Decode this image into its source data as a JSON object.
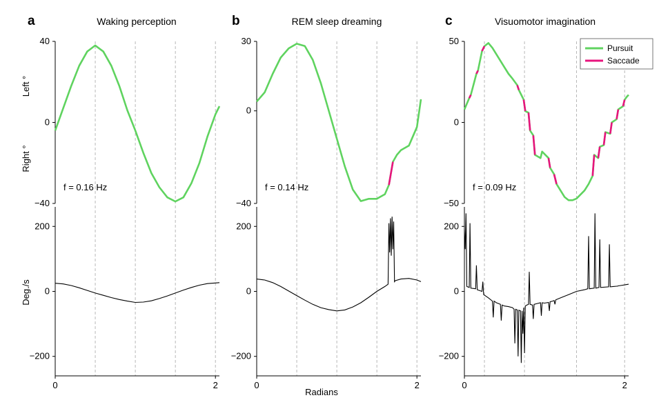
{
  "figure": {
    "xlabel": "Radians",
    "ylabel_top_left": "Left °",
    "ylabel_top_right": "Right °",
    "ylabel_bottom": "Deg./s",
    "legend": [
      {
        "label": "Pursuit",
        "color": "#5fd35f"
      },
      {
        "label": "Saccade",
        "color": "#e8147d"
      }
    ]
  },
  "chart_data": [
    {
      "type": "line",
      "letter": "a",
      "title": "Waking perception",
      "freq_label": "f = 0.16 Hz",
      "x_range": [
        0,
        2.05
      ],
      "x_ticks": [
        0,
        2
      ],
      "x_tick_labels": [
        "0",
        "2"
      ],
      "gridlines_x": [
        0.5,
        1.0,
        1.5,
        2.0
      ],
      "position": {
        "ylim": [
          -40,
          40
        ],
        "y_ticks": [
          40,
          0,
          -40
        ],
        "y_tick_labels": [
          "40",
          "0",
          "−40"
        ],
        "series_name": "Pursuit",
        "x": [
          0,
          0.1,
          0.2,
          0.3,
          0.4,
          0.5,
          0.6,
          0.7,
          0.8,
          0.9,
          1.0,
          1.1,
          1.2,
          1.3,
          1.4,
          1.5,
          1.6,
          1.7,
          1.8,
          1.9,
          2.0,
          2.05
        ],
        "y": [
          -4,
          7,
          18,
          28,
          35,
          38,
          35,
          28,
          18,
          6,
          -4,
          -15,
          -25,
          -32,
          -37,
          -39,
          -37,
          -30,
          -20,
          -7,
          4,
          8
        ],
        "saccades": []
      },
      "velocity": {
        "ylim": [
          -260,
          260
        ],
        "y_ticks": [
          200,
          0,
          -200
        ],
        "y_tick_labels": [
          "200",
          "0",
          "−200"
        ],
        "x": [
          0,
          0.1,
          0.2,
          0.3,
          0.4,
          0.5,
          0.6,
          0.7,
          0.8,
          0.9,
          1.0,
          1.1,
          1.2,
          1.3,
          1.4,
          1.5,
          1.6,
          1.7,
          1.8,
          1.9,
          2.0,
          2.05
        ],
        "y": [
          25,
          23,
          18,
          11,
          3,
          -5,
          -12,
          -19,
          -25,
          -30,
          -34,
          -33,
          -29,
          -22,
          -14,
          -5,
          4,
          12,
          19,
          24,
          26,
          27
        ]
      }
    },
    {
      "type": "line",
      "letter": "b",
      "title": "REM sleep dreaming",
      "freq_label": "f = 0.14 Hz",
      "x_range": [
        0,
        2.05
      ],
      "x_ticks": [
        0,
        2
      ],
      "x_tick_labels": [
        "0",
        "2"
      ],
      "gridlines_x": [
        0.5,
        1.0,
        1.5,
        2.0
      ],
      "position": {
        "ylim": [
          -40,
          30
        ],
        "y_ticks": [
          30,
          0,
          -40
        ],
        "y_tick_labels": [
          "30",
          "0",
          "−40"
        ],
        "series_name": "Pursuit",
        "x": [
          0,
          0.1,
          0.2,
          0.3,
          0.4,
          0.5,
          0.6,
          0.7,
          0.8,
          0.9,
          1.0,
          1.1,
          1.2,
          1.3,
          1.4,
          1.5,
          1.55,
          1.6,
          1.65,
          1.7,
          1.75,
          1.8,
          1.9,
          2.0,
          2.05
        ],
        "y": [
          4,
          8,
          16,
          23,
          27,
          29,
          28,
          22,
          12,
          0,
          -12,
          -24,
          -34,
          -39,
          -38,
          -38,
          -37,
          -36,
          -32,
          -22,
          -19,
          -17,
          -15,
          -7,
          5
        ],
        "saccades": [
          [
            1.65,
            1.72
          ]
        ]
      },
      "velocity": {
        "ylim": [
          -260,
          260
        ],
        "y_ticks": [
          200,
          0,
          -200
        ],
        "y_tick_labels": [
          "200",
          "0",
          "−200"
        ],
        "x": [
          0,
          0.1,
          0.2,
          0.3,
          0.4,
          0.5,
          0.6,
          0.7,
          0.8,
          0.9,
          1.0,
          1.1,
          1.2,
          1.3,
          1.4,
          1.5,
          1.6,
          1.64,
          1.65,
          1.66,
          1.67,
          1.68,
          1.69,
          1.7,
          1.71,
          1.72,
          1.73,
          1.8,
          1.9,
          2.0,
          2.05
        ],
        "y": [
          38,
          35,
          27,
          15,
          1,
          -13,
          -27,
          -40,
          -50,
          -56,
          -60,
          -57,
          -48,
          -35,
          -18,
          0,
          15,
          22,
          210,
          120,
          225,
          110,
          230,
          130,
          215,
          30,
          33,
          38,
          40,
          35,
          30
        ]
      }
    },
    {
      "type": "line",
      "letter": "c",
      "title": "Visuomotor imagination",
      "freq_label": "f = 0.09 Hz",
      "x_range": [
        0,
        2.05
      ],
      "x_ticks": [
        0,
        2
      ],
      "x_tick_labels": [
        "0",
        "2"
      ],
      "gridlines_x": [
        0.25,
        0.75,
        1.4,
        2.0
      ],
      "position": {
        "ylim": [
          -50,
          50
        ],
        "y_ticks": [
          50,
          0,
          -50
        ],
        "y_tick_labels": [
          "50",
          "0",
          "−50"
        ],
        "series_name": "Pursuit",
        "x": [
          0,
          0.06,
          0.08,
          0.15,
          0.17,
          0.22,
          0.25,
          0.3,
          0.35,
          0.4,
          0.45,
          0.5,
          0.55,
          0.6,
          0.66,
          0.68,
          0.74,
          0.76,
          0.8,
          0.82,
          0.86,
          0.88,
          0.95,
          0.97,
          1.05,
          1.07,
          1.12,
          1.15,
          1.2,
          1.25,
          1.3,
          1.35,
          1.4,
          1.5,
          1.55,
          1.6,
          1.62,
          1.67,
          1.69,
          1.74,
          1.76,
          1.82,
          1.84,
          1.9,
          1.92,
          1.98,
          2.0,
          2.03,
          2.05
        ],
        "y": [
          8,
          15,
          17,
          30,
          32,
          44,
          47,
          49,
          46,
          42,
          38,
          34,
          30,
          27,
          23,
          20,
          14,
          7,
          6,
          -5,
          -8,
          -20,
          -22,
          -18,
          -22,
          -28,
          -32,
          -38,
          -42,
          -46,
          -48,
          -48,
          -47,
          -42,
          -38,
          -33,
          -20,
          -22,
          -15,
          -14,
          -6,
          -7,
          0,
          2,
          8,
          10,
          14,
          16,
          17
        ],
        "saccades": [
          [
            0.06,
            0.08
          ],
          [
            0.15,
            0.17
          ],
          [
            0.22,
            0.25
          ],
          [
            0.66,
            0.68
          ],
          [
            0.74,
            0.76
          ],
          [
            0.8,
            0.82
          ],
          [
            0.86,
            0.88
          ],
          [
            1.05,
            1.07
          ],
          [
            1.12,
            1.15
          ],
          [
            1.6,
            1.62
          ],
          [
            1.67,
            1.69
          ],
          [
            1.74,
            1.76
          ],
          [
            1.82,
            1.84
          ],
          [
            1.9,
            1.92
          ],
          [
            1.98,
            2.0
          ]
        ]
      },
      "velocity": {
        "ylim": [
          -260,
          260
        ],
        "y_ticks": [
          200,
          0,
          -200
        ],
        "y_tick_labels": [
          "200",
          "0",
          "−200"
        ],
        "x": [
          0,
          0.01,
          0.02,
          0.03,
          0.06,
          0.07,
          0.08,
          0.14,
          0.15,
          0.16,
          0.22,
          0.23,
          0.24,
          0.3,
          0.35,
          0.36,
          0.37,
          0.4,
          0.45,
          0.46,
          0.47,
          0.5,
          0.55,
          0.6,
          0.62,
          0.63,
          0.64,
          0.66,
          0.67,
          0.68,
          0.7,
          0.71,
          0.72,
          0.73,
          0.74,
          0.75,
          0.76,
          0.78,
          0.8,
          0.81,
          0.82,
          0.85,
          0.86,
          0.87,
          0.9,
          0.95,
          0.96,
          0.97,
          1.0,
          1.05,
          1.06,
          1.07,
          1.1,
          1.12,
          1.13,
          1.14,
          1.2,
          1.3,
          1.4,
          1.5,
          1.54,
          1.55,
          1.56,
          1.62,
          1.63,
          1.64,
          1.68,
          1.69,
          1.7,
          1.8,
          1.81,
          1.82,
          1.9,
          1.91,
          1.92,
          1.95,
          2.0,
          2.05
        ],
        "y": [
          190,
          130,
          240,
          15,
          12,
          210,
          10,
          8,
          80,
          5,
          0,
          30,
          -10,
          -20,
          -30,
          -80,
          -30,
          -35,
          -40,
          -90,
          -42,
          -45,
          -47,
          -50,
          -55,
          -160,
          -55,
          -57,
          -200,
          -58,
          -60,
          -220,
          -60,
          -130,
          -50,
          -190,
          -45,
          -42,
          -40,
          60,
          -40,
          -42,
          -85,
          -40,
          -38,
          -35,
          -75,
          -35,
          -36,
          -34,
          -60,
          -32,
          -30,
          -28,
          -40,
          -26,
          -20,
          -10,
          0,
          5,
          8,
          170,
          8,
          10,
          240,
          10,
          12,
          160,
          12,
          14,
          145,
          14,
          16,
          16,
          17,
          18,
          20,
          22
        ]
      }
    }
  ]
}
